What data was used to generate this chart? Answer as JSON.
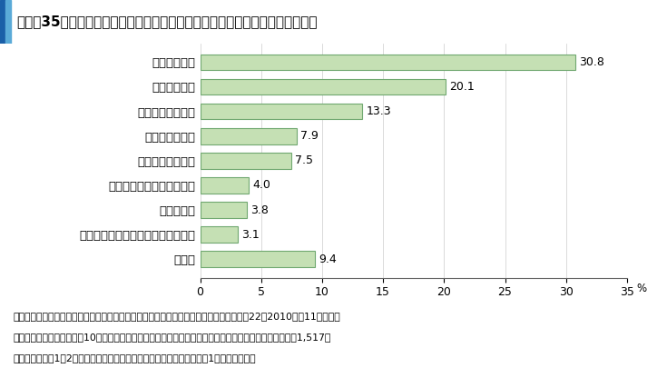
{
  "title": "図３－35　新規参入者が参入後１～２年目に経営面で困っていること（１位）",
  "categories": [
    "所得が少ない",
    "技術の未熟さ",
    "設備投資金の不足",
    "運転資金の不足",
    "農地が集まらない",
    "販売が思うようにいかない",
    "労働力不足",
    "栽培計画・段取りがうまくいかない",
    "その他"
  ],
  "values": [
    30.8,
    20.1,
    13.3,
    7.9,
    7.5,
    4.0,
    3.8,
    3.1,
    9.4
  ],
  "bar_color_top": "#e8f5e8",
  "bar_color_bottom": "#c8e6c8",
  "bar_edge_color": "#5a9a5a",
  "xlim": [
    0,
    35
  ],
  "xticks": [
    0,
    5,
    10,
    15,
    20,
    25,
    30,
    35
  ],
  "title_bg_color": "#d0e8f0",
  "title_bar_color1": "#1a5fa8",
  "title_bar_color2": "#5aaad8",
  "footnote1": "資料：全国農業会議所「新規就農者（新規参入者）の就農実態に関する調査結果」（平成22（2010）年11月実施）",
  "footnote2": "　注：１）就農後おおむね10年以内の農業外からの新規就農者を対象としたアンケート調査（有効回答数1,517）",
  "footnote3": "　　２）参入後1～2年目の新規参入者が経営面で困っていることとして1位にあげた項目",
  "background_color": "#ffffff"
}
